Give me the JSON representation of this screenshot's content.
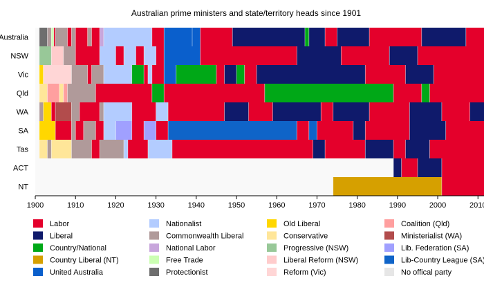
{
  "chart_data": {
    "type": "timeline",
    "title": "Australian prime ministers and state/territory heads since 1901",
    "x_start": 1900,
    "x_end": 2010,
    "xlim": [
      1900,
      2011.5
    ],
    "x_ticks": [
      1900,
      1910,
      1920,
      1930,
      1940,
      1950,
      1960,
      1970,
      1980,
      1990,
      2000,
      2010
    ],
    "x_tick_labels": [
      "1900",
      "1910",
      "1920",
      "1930",
      "1940",
      "1950",
      "1960",
      "1970",
      "1980",
      "1990",
      "2000",
      "2010"
    ],
    "grid": false,
    "legend_position": "bottom",
    "parties": [
      {
        "key": "labor",
        "name": "Labor",
        "color": "#e4002b"
      },
      {
        "key": "liberal",
        "name": "Liberal",
        "color": "#0f1a6b"
      },
      {
        "key": "country",
        "name": "Country/National",
        "color": "#00a817"
      },
      {
        "key": "clp",
        "name": "Country Liberal (NT)",
        "color": "#d6a000"
      },
      {
        "key": "ua",
        "name": "United Australia",
        "color": "#0a5fcc"
      },
      {
        "key": "nationalist",
        "name": "Nationalist",
        "color": "#b3ccff"
      },
      {
        "key": "cwlib",
        "name": "Commonwealth Liberal",
        "color": "#b09a9a"
      },
      {
        "key": "natlabor",
        "name": "National Labor",
        "color": "#c8a6dc"
      },
      {
        "key": "freetrade",
        "name": "Free Trade",
        "color": "#ccffb3"
      },
      {
        "key": "protectionist",
        "name": "Protectionist",
        "color": "#6e6e6e"
      },
      {
        "key": "oldlib",
        "name": "Old Liberal",
        "color": "#ffd700"
      },
      {
        "key": "conservative",
        "name": "Conservative",
        "color": "#ffe699"
      },
      {
        "key": "progressive",
        "name": "Progressive (NSW)",
        "color": "#98c898"
      },
      {
        "key": "libreform",
        "name": "Liberal Reform (NSW)",
        "color": "#ffcccc"
      },
      {
        "key": "reformvic",
        "name": "Reform (Vic)",
        "color": "#ffd6d6"
      },
      {
        "key": "coalitionqld",
        "name": "Coalition (Qld)",
        "color": "#ff9f9f"
      },
      {
        "key": "ministerialist",
        "name": "Ministerialist (WA)",
        "color": "#b24c4c"
      },
      {
        "key": "libfed",
        "name": "Lib. Federation (SA)",
        "color": "#a0a0ff"
      },
      {
        "key": "lcl",
        "name": "Lib-Country League (SA)",
        "color": "#0f64c8"
      },
      {
        "key": "none",
        "name": "No offical party",
        "color": "#e6e6e6"
      }
    ],
    "rows": [
      {
        "name": "Australia",
        "segments": [
          {
            "s": 1901,
            "e": 1903,
            "p": "protectionist"
          },
          {
            "s": 1903,
            "e": 1904,
            "p": "cwlib"
          },
          {
            "s": 1904,
            "e": 1904.6,
            "p": "freetrade"
          },
          {
            "s": 1904.6,
            "e": 1905,
            "p": "labor"
          },
          {
            "s": 1905,
            "e": 1908,
            "p": "cwlib"
          },
          {
            "s": 1908,
            "e": 1909,
            "p": "labor"
          },
          {
            "s": 1909,
            "e": 1910,
            "p": "cwlib"
          },
          {
            "s": 1910,
            "e": 1913,
            "p": "labor"
          },
          {
            "s": 1913,
            "e": 1914,
            "p": "cwlib"
          },
          {
            "s": 1914,
            "e": 1916,
            "p": "labor"
          },
          {
            "s": 1916,
            "e": 1917,
            "p": "natlabor"
          },
          {
            "s": 1917,
            "e": 1929,
            "p": "nationalist"
          },
          {
            "s": 1929,
            "e": 1932,
            "p": "labor"
          },
          {
            "s": 1932,
            "e": 1939,
            "p": "ua"
          },
          {
            "s": 1939,
            "e": 1941,
            "p": "ua"
          },
          {
            "s": 1941,
            "e": 1949,
            "p": "labor"
          },
          {
            "s": 1949,
            "e": 1967,
            "p": "liberal"
          },
          {
            "s": 1967,
            "e": 1968,
            "p": "country"
          },
          {
            "s": 1968,
            "e": 1972,
            "p": "liberal"
          },
          {
            "s": 1972,
            "e": 1975,
            "p": "labor"
          },
          {
            "s": 1975,
            "e": 1983,
            "p": "liberal"
          },
          {
            "s": 1983,
            "e": 1996,
            "p": "labor"
          },
          {
            "s": 1996,
            "e": 2007,
            "p": "liberal"
          },
          {
            "s": 2007,
            "e": 2011.5,
            "p": "labor"
          }
        ]
      },
      {
        "name": "NSW",
        "segments": [
          {
            "s": 1901,
            "e": 1904,
            "p": "progressive"
          },
          {
            "s": 1904,
            "e": 1907,
            "p": "libreform"
          },
          {
            "s": 1907,
            "e": 1910,
            "p": "cwlib"
          },
          {
            "s": 1910,
            "e": 1916,
            "p": "labor"
          },
          {
            "s": 1916,
            "e": 1920,
            "p": "nationalist"
          },
          {
            "s": 1920,
            "e": 1922,
            "p": "labor"
          },
          {
            "s": 1922,
            "e": 1925,
            "p": "nationalist"
          },
          {
            "s": 1925,
            "e": 1927,
            "p": "labor"
          },
          {
            "s": 1927,
            "e": 1930,
            "p": "nationalist"
          },
          {
            "s": 1930,
            "e": 1932,
            "p": "labor"
          },
          {
            "s": 1932,
            "e": 1941,
            "p": "ua"
          },
          {
            "s": 1941,
            "e": 1965,
            "p": "labor"
          },
          {
            "s": 1965,
            "e": 1976,
            "p": "liberal"
          },
          {
            "s": 1976,
            "e": 1988,
            "p": "labor"
          },
          {
            "s": 1988,
            "e": 1995,
            "p": "liberal"
          },
          {
            "s": 1995,
            "e": 2011.5,
            "p": "labor"
          }
        ]
      },
      {
        "name": "Vic",
        "segments": [
          {
            "s": 1901,
            "e": 1902,
            "p": "oldlib"
          },
          {
            "s": 1902,
            "e": 1909,
            "p": "reformvic"
          },
          {
            "s": 1909,
            "e": 1913,
            "p": "cwlib"
          },
          {
            "s": 1913,
            "e": 1914,
            "p": "labor"
          },
          {
            "s": 1914,
            "e": 1917,
            "p": "cwlib"
          },
          {
            "s": 1917,
            "e": 1924,
            "p": "nationalist"
          },
          {
            "s": 1924,
            "e": 1927,
            "p": "country"
          },
          {
            "s": 1927,
            "e": 1928,
            "p": "labor"
          },
          {
            "s": 1928,
            "e": 1929,
            "p": "nationalist"
          },
          {
            "s": 1929,
            "e": 1932,
            "p": "labor"
          },
          {
            "s": 1932,
            "e": 1935,
            "p": "ua"
          },
          {
            "s": 1935,
            "e": 1945,
            "p": "country"
          },
          {
            "s": 1945,
            "e": 1947,
            "p": "labor"
          },
          {
            "s": 1947,
            "e": 1950,
            "p": "liberal"
          },
          {
            "s": 1950,
            "e": 1952,
            "p": "country"
          },
          {
            "s": 1952,
            "e": 1955,
            "p": "labor"
          },
          {
            "s": 1955,
            "e": 1982,
            "p": "liberal"
          },
          {
            "s": 1982,
            "e": 1992,
            "p": "labor"
          },
          {
            "s": 1992,
            "e": 1999,
            "p": "liberal"
          },
          {
            "s": 1999,
            "e": 2011.5,
            "p": "labor"
          }
        ]
      },
      {
        "name": "Qld",
        "segments": [
          {
            "s": 1901,
            "e": 1903,
            "p": "conservative"
          },
          {
            "s": 1903,
            "e": 1906,
            "p": "coalitionqld"
          },
          {
            "s": 1906,
            "e": 1907,
            "p": "conservative"
          },
          {
            "s": 1907,
            "e": 1908,
            "p": "coalitionqld"
          },
          {
            "s": 1908,
            "e": 1915,
            "p": "cwlib"
          },
          {
            "s": 1915,
            "e": 1929,
            "p": "labor"
          },
          {
            "s": 1929,
            "e": 1932,
            "p": "country"
          },
          {
            "s": 1932,
            "e": 1957,
            "p": "labor"
          },
          {
            "s": 1957,
            "e": 1989,
            "p": "country"
          },
          {
            "s": 1989,
            "e": 1996,
            "p": "labor"
          },
          {
            "s": 1996,
            "e": 1998,
            "p": "country"
          },
          {
            "s": 1998,
            "e": 2011.5,
            "p": "labor"
          }
        ]
      },
      {
        "name": "WA",
        "segments": [
          {
            "s": 1901,
            "e": 1902,
            "p": "cwlib"
          },
          {
            "s": 1902,
            "e": 1904,
            "p": "oldlib"
          },
          {
            "s": 1904,
            "e": 1905,
            "p": "labor"
          },
          {
            "s": 1905,
            "e": 1909,
            "p": "ministerialist"
          },
          {
            "s": 1909,
            "e": 1911,
            "p": "cwlib"
          },
          {
            "s": 1911,
            "e": 1916,
            "p": "labor"
          },
          {
            "s": 1916,
            "e": 1917,
            "p": "cwlib"
          },
          {
            "s": 1917,
            "e": 1924,
            "p": "nationalist"
          },
          {
            "s": 1924,
            "e": 1930,
            "p": "labor"
          },
          {
            "s": 1930,
            "e": 1933,
            "p": "nationalist"
          },
          {
            "s": 1933,
            "e": 1947,
            "p": "labor"
          },
          {
            "s": 1947,
            "e": 1953,
            "p": "liberal"
          },
          {
            "s": 1953,
            "e": 1959,
            "p": "labor"
          },
          {
            "s": 1959,
            "e": 1971,
            "p": "liberal"
          },
          {
            "s": 1971,
            "e": 1974,
            "p": "labor"
          },
          {
            "s": 1974,
            "e": 1983,
            "p": "liberal"
          },
          {
            "s": 1983,
            "e": 1993,
            "p": "labor"
          },
          {
            "s": 1993,
            "e": 2001,
            "p": "liberal"
          },
          {
            "s": 2001,
            "e": 2008,
            "p": "labor"
          },
          {
            "s": 2008,
            "e": 2011.5,
            "p": "liberal"
          }
        ]
      },
      {
        "name": "SA",
        "segments": [
          {
            "s": 1901,
            "e": 1905,
            "p": "oldlib"
          },
          {
            "s": 1905,
            "e": 1909,
            "p": "labor"
          },
          {
            "s": 1909,
            "e": 1910,
            "p": "cwlib"
          },
          {
            "s": 1910,
            "e": 1912,
            "p": "labor"
          },
          {
            "s": 1912,
            "e": 1915,
            "p": "cwlib"
          },
          {
            "s": 1915,
            "e": 1917,
            "p": "labor"
          },
          {
            "s": 1917,
            "e": 1920,
            "p": "nationalist"
          },
          {
            "s": 1920,
            "e": 1924,
            "p": "libfed"
          },
          {
            "s": 1924,
            "e": 1927,
            "p": "labor"
          },
          {
            "s": 1927,
            "e": 1930,
            "p": "libfed"
          },
          {
            "s": 1930,
            "e": 1933,
            "p": "labor"
          },
          {
            "s": 1933,
            "e": 1965,
            "p": "lcl"
          },
          {
            "s": 1965,
            "e": 1968,
            "p": "labor"
          },
          {
            "s": 1968,
            "e": 1970,
            "p": "lcl"
          },
          {
            "s": 1970,
            "e": 1979,
            "p": "labor"
          },
          {
            "s": 1979,
            "e": 1982,
            "p": "liberal"
          },
          {
            "s": 1982,
            "e": 1993,
            "p": "labor"
          },
          {
            "s": 1993,
            "e": 2002,
            "p": "liberal"
          },
          {
            "s": 2002,
            "e": 2011.5,
            "p": "labor"
          }
        ]
      },
      {
        "name": "Tas",
        "segments": [
          {
            "s": 1901,
            "e": 1903,
            "p": "conservative"
          },
          {
            "s": 1903,
            "e": 1904,
            "p": "cwlib"
          },
          {
            "s": 1904,
            "e": 1909,
            "p": "conservative"
          },
          {
            "s": 1909,
            "e": 1914,
            "p": "cwlib"
          },
          {
            "s": 1914,
            "e": 1916,
            "p": "labor"
          },
          {
            "s": 1916,
            "e": 1922,
            "p": "cwlib"
          },
          {
            "s": 1922,
            "e": 1923,
            "p": "nationalist"
          },
          {
            "s": 1923,
            "e": 1928,
            "p": "labor"
          },
          {
            "s": 1928,
            "e": 1934,
            "p": "nationalist"
          },
          {
            "s": 1934,
            "e": 1969,
            "p": "labor"
          },
          {
            "s": 1969,
            "e": 1972,
            "p": "liberal"
          },
          {
            "s": 1972,
            "e": 1982,
            "p": "labor"
          },
          {
            "s": 1982,
            "e": 1989,
            "p": "liberal"
          },
          {
            "s": 1989,
            "e": 1992,
            "p": "labor"
          },
          {
            "s": 1992,
            "e": 1998,
            "p": "liberal"
          },
          {
            "s": 1998,
            "e": 2011.5,
            "p": "labor"
          }
        ]
      },
      {
        "name": "ACT",
        "segments": [
          {
            "s": 1989,
            "e": 1991,
            "p": "liberal"
          },
          {
            "s": 1991,
            "e": 1995,
            "p": "labor"
          },
          {
            "s": 1995,
            "e": 2001,
            "p": "liberal"
          },
          {
            "s": 2001,
            "e": 2011.5,
            "p": "labor"
          }
        ]
      },
      {
        "name": "NT",
        "segments": [
          {
            "s": 1974,
            "e": 2001,
            "p": "clp"
          },
          {
            "s": 2001,
            "e": 2011.5,
            "p": "labor"
          }
        ]
      }
    ]
  }
}
